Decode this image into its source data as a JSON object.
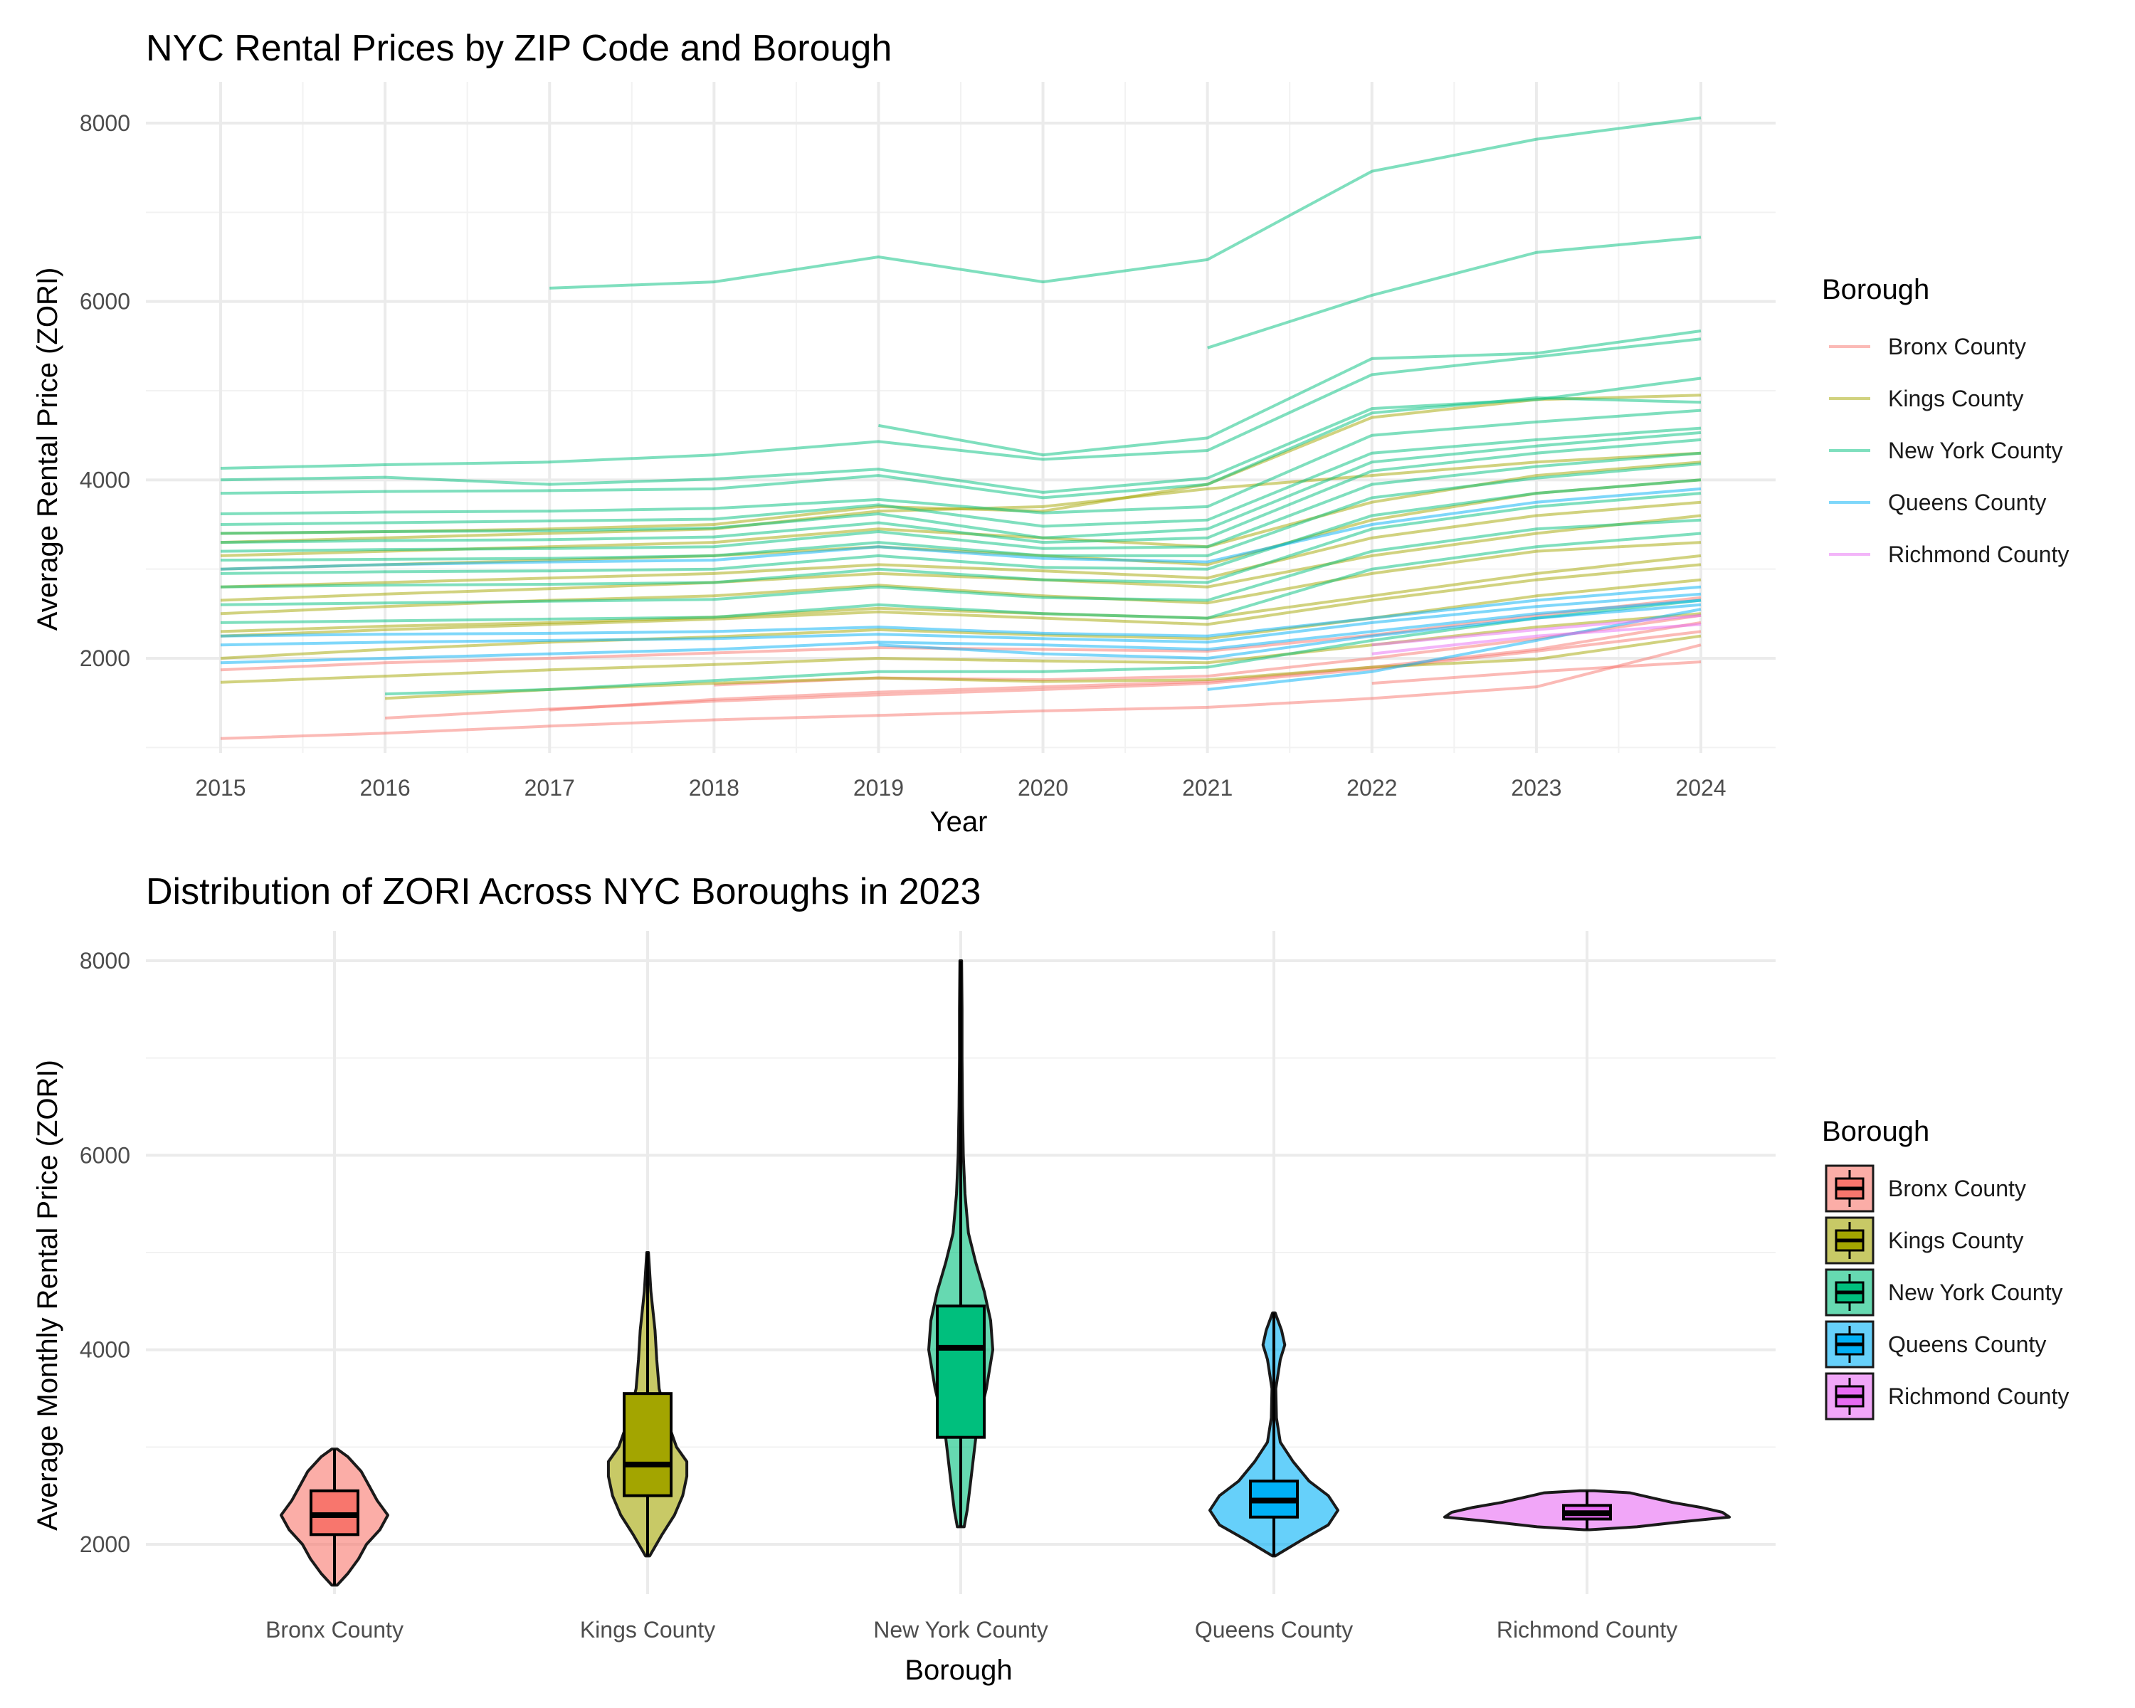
{
  "colors": {
    "Bronx County": "#F8766D",
    "Kings County": "#A3A500",
    "New York County": "#00BF7D",
    "Queens County": "#00B0F6",
    "Richmond County": "#E76BF3"
  },
  "chart_data": [
    {
      "type": "line",
      "title": "NYC Rental Prices by ZIP Code and Borough",
      "xlabel": "Year",
      "ylabel": "Average Rental Price (ZORI)",
      "x": [
        2015,
        2016,
        2017,
        2018,
        2019,
        2020,
        2021,
        2022,
        2023,
        2024
      ],
      "xlim": [
        2015,
        2024
      ],
      "ylim": [
        1000,
        8000
      ],
      "yticks": [
        2000,
        4000,
        6000,
        8000
      ],
      "grid": true,
      "legend": {
        "title": "Borough",
        "position": "right",
        "entries": [
          "Bronx County",
          "Kings County",
          "New York County",
          "Queens County",
          "Richmond County"
        ]
      },
      "series": [
        {
          "name": "Bronx County",
          "values": [
            1100,
            1160,
            1240,
            1310,
            1360,
            1410,
            1450,
            1550,
            1680,
            2150
          ]
        },
        {
          "name": "Bronx County",
          "values": [
            null,
            1330,
            1430,
            1520,
            1590,
            1650,
            1720,
            1880,
            2080,
            2300
          ]
        },
        {
          "name": "Bronx County",
          "values": [
            null,
            null,
            1420,
            1540,
            1620,
            1680,
            1740,
            1900,
            2100,
            2400
          ]
        },
        {
          "name": "Bronx County",
          "values": [
            null,
            null,
            null,
            null,
            null,
            null,
            null,
            1720,
            1850,
            1960
          ]
        },
        {
          "name": "Bronx County",
          "values": [
            1870,
            1950,
            2000,
            2060,
            2120,
            2100,
            2080,
            2260,
            2480,
            2680
          ]
        },
        {
          "name": "Bronx County",
          "values": [
            null,
            null,
            null,
            1700,
            1780,
            1760,
            1800,
            2000,
            2220,
            2480
          ]
        },
        {
          "name": "Kings County",
          "values": [
            1730,
            1800,
            1870,
            1930,
            2000,
            1970,
            1950,
            2150,
            2350,
            2500
          ]
        },
        {
          "name": "Kings County",
          "values": [
            null,
            1550,
            1650,
            1720,
            1780,
            1740,
            1760,
            1900,
            1990,
            2250
          ]
        },
        {
          "name": "Kings County",
          "values": [
            2000,
            2100,
            2180,
            2240,
            2320,
            2260,
            2220,
            2450,
            2700,
            2880
          ]
        },
        {
          "name": "Kings County",
          "values": [
            2250,
            2320,
            2380,
            2440,
            2520,
            2450,
            2380,
            2650,
            2880,
            3050
          ]
        },
        {
          "name": "Kings County",
          "values": [
            2500,
            2580,
            2650,
            2700,
            2820,
            2700,
            2620,
            2950,
            3200,
            3300
          ]
        },
        {
          "name": "Kings County",
          "values": [
            2650,
            2720,
            2780,
            2850,
            2950,
            2880,
            2800,
            3150,
            3400,
            3600
          ]
        },
        {
          "name": "Kings County",
          "values": [
            2800,
            2850,
            2900,
            2950,
            3050,
            2980,
            2900,
            3350,
            3600,
            3750
          ]
        },
        {
          "name": "Kings County",
          "values": [
            3000,
            3050,
            3100,
            3150,
            3250,
            3150,
            3050,
            3550,
            3850,
            4000
          ]
        },
        {
          "name": "Kings County",
          "values": [
            3150,
            3200,
            3250,
            3300,
            3450,
            3350,
            3250,
            3750,
            4050,
            4200
          ]
        },
        {
          "name": "Kings County",
          "values": [
            3300,
            3350,
            3400,
            3450,
            3650,
            3700,
            3900,
            4050,
            4200,
            4300
          ]
        },
        {
          "name": "Kings County",
          "values": [
            3400,
            3420,
            3450,
            3500,
            3700,
            3650,
            3950,
            4700,
            4900,
            4950
          ]
        },
        {
          "name": "Kings County",
          "values": [
            2300,
            2360,
            2400,
            2460,
            2560,
            2500,
            2450,
            2700,
            2950,
            3150
          ]
        },
        {
          "name": "New York County",
          "values": [
            null,
            null,
            6150,
            6220,
            6500,
            6220,
            6470,
            7460,
            7820,
            8060
          ]
        },
        {
          "name": "New York County",
          "values": [
            null,
            null,
            null,
            null,
            null,
            null,
            5480,
            6070,
            6550,
            6720
          ]
        },
        {
          "name": "New York County",
          "values": [
            4130,
            4170,
            4200,
            4280,
            4430,
            4230,
            4330,
            5180,
            5380,
            5580
          ]
        },
        {
          "name": "New York County",
          "values": [
            null,
            null,
            null,
            null,
            4610,
            4280,
            4470,
            5360,
            5420,
            5670
          ]
        },
        {
          "name": "New York County",
          "values": [
            4000,
            4030,
            3950,
            4010,
            4120,
            3860,
            4020,
            4800,
            4900,
            5140
          ]
        },
        {
          "name": "New York County",
          "values": [
            3850,
            3870,
            3880,
            3900,
            4050,
            3800,
            3950,
            4750,
            4920,
            4870
          ]
        },
        {
          "name": "New York County",
          "values": [
            3620,
            3640,
            3650,
            3680,
            3780,
            3630,
            3700,
            4500,
            4650,
            4780
          ]
        },
        {
          "name": "New York County",
          "values": [
            3500,
            3520,
            3540,
            3560,
            3720,
            3480,
            3550,
            4300,
            4450,
            4580
          ]
        },
        {
          "name": "New York County",
          "values": [
            3400,
            3420,
            3430,
            3460,
            3620,
            3350,
            3450,
            4200,
            4380,
            4530
          ]
        },
        {
          "name": "New York County",
          "values": [
            3300,
            3320,
            3330,
            3360,
            3520,
            3300,
            3350,
            4100,
            4300,
            4450
          ]
        },
        {
          "name": "New York County",
          "values": [
            3200,
            3220,
            3230,
            3250,
            3420,
            3230,
            3250,
            3950,
            4150,
            4300
          ]
        },
        {
          "name": "New York County",
          "values": [
            3100,
            3110,
            3120,
            3150,
            3300,
            3150,
            3150,
            3800,
            4020,
            4180
          ]
        },
        {
          "name": "New York County",
          "values": [
            2950,
            2970,
            2980,
            3000,
            3150,
            3020,
            3000,
            3600,
            3850,
            4000
          ]
        },
        {
          "name": "New York County",
          "values": [
            2800,
            2820,
            2830,
            2850,
            3000,
            2880,
            2850,
            3450,
            3700,
            3850
          ]
        },
        {
          "name": "New York County",
          "values": [
            2600,
            2620,
            2640,
            2660,
            2800,
            2680,
            2650,
            3200,
            3450,
            3550
          ]
        },
        {
          "name": "New York County",
          "values": [
            2400,
            2420,
            2440,
            2460,
            2600,
            2500,
            2450,
            3000,
            3250,
            3400
          ]
        },
        {
          "name": "New York County",
          "values": [
            null,
            1600,
            1650,
            1750,
            1850,
            1850,
            1900,
            2200,
            2450,
            2650
          ]
        },
        {
          "name": "Queens County",
          "values": [
            3000,
            3050,
            3080,
            3100,
            3250,
            3120,
            3080,
            3500,
            3750,
            3900
          ]
        },
        {
          "name": "Queens County",
          "values": [
            2250,
            2270,
            2280,
            2300,
            2350,
            2280,
            2250,
            2450,
            2650,
            2800
          ]
        },
        {
          "name": "Queens County",
          "values": [
            2150,
            2180,
            2200,
            2220,
            2270,
            2220,
            2180,
            2400,
            2580,
            2720
          ]
        },
        {
          "name": "Queens County",
          "values": [
            1950,
            2000,
            2050,
            2100,
            2180,
            2150,
            2100,
            2300,
            2500,
            2650
          ]
        },
        {
          "name": "Queens County",
          "values": [
            null,
            null,
            null,
            null,
            2150,
            2050,
            2000,
            2250,
            2450,
            2600
          ]
        },
        {
          "name": "Queens County",
          "values": [
            null,
            null,
            null,
            null,
            null,
            null,
            1650,
            1850,
            2200,
            2550
          ]
        },
        {
          "name": "Richmond County",
          "values": [
            null,
            null,
            null,
            null,
            null,
            null,
            null,
            2150,
            2320,
            2480
          ]
        },
        {
          "name": "Richmond County",
          "values": [
            null,
            null,
            null,
            null,
            null,
            null,
            null,
            2050,
            2250,
            2380
          ]
        }
      ]
    },
    {
      "type": "violin",
      "title": "Distribution of ZORI Across NYC Boroughs in 2023",
      "xlabel": "Borough",
      "ylabel": "Average Monthly Rental Price (ZORI)",
      "categories": [
        "Bronx County",
        "Kings County",
        "New York County",
        "Queens County",
        "Richmond County"
      ],
      "ylim": [
        1500,
        8200
      ],
      "yticks": [
        2000,
        4000,
        6000,
        8000
      ],
      "grid": true,
      "legend": {
        "title": "Borough",
        "position": "right",
        "entries": [
          "Bronx County",
          "Kings County",
          "New York County",
          "Queens County",
          "Richmond County"
        ]
      },
      "series": [
        {
          "name": "Bronx County",
          "min": 1580,
          "q1": 2100,
          "median": 2300,
          "q3": 2550,
          "max": 2980,
          "density": [
            [
              1580,
              0.05
            ],
            [
              1700,
              0.25
            ],
            [
              1850,
              0.45
            ],
            [
              2000,
              0.6
            ],
            [
              2150,
              0.85
            ],
            [
              2300,
              1.0
            ],
            [
              2450,
              0.8
            ],
            [
              2600,
              0.65
            ],
            [
              2750,
              0.5
            ],
            [
              2900,
              0.25
            ],
            [
              2980,
              0.05
            ]
          ]
        },
        {
          "name": "Kings County",
          "min": 1880,
          "q1": 2500,
          "median": 2820,
          "q3": 3550,
          "max": 5000,
          "density": [
            [
              1880,
              0.05
            ],
            [
              2100,
              0.35
            ],
            [
              2300,
              0.65
            ],
            [
              2500,
              0.85
            ],
            [
              2700,
              0.95
            ],
            [
              2850,
              0.95
            ],
            [
              3000,
              0.7
            ],
            [
              3300,
              0.45
            ],
            [
              3600,
              0.28
            ],
            [
              3900,
              0.22
            ],
            [
              4200,
              0.18
            ],
            [
              4600,
              0.08
            ],
            [
              4800,
              0.05
            ],
            [
              5000,
              0.02
            ]
          ]
        },
        {
          "name": "New York County",
          "min": 2180,
          "q1": 3100,
          "median": 4020,
          "q3": 4450,
          "max": 8000,
          "density": [
            [
              2180,
              0.08
            ],
            [
              2350,
              0.15
            ],
            [
              2600,
              0.22
            ],
            [
              2900,
              0.3
            ],
            [
              3200,
              0.38
            ],
            [
              3600,
              0.6
            ],
            [
              4000,
              0.75
            ],
            [
              4300,
              0.7
            ],
            [
              4600,
              0.55
            ],
            [
              4900,
              0.35
            ],
            [
              5200,
              0.18
            ],
            [
              5600,
              0.1
            ],
            [
              6000,
              0.06
            ],
            [
              6500,
              0.04
            ],
            [
              7000,
              0.03
            ],
            [
              7500,
              0.03
            ],
            [
              8000,
              0.02
            ]
          ]
        },
        {
          "name": "Queens County",
          "min": 1880,
          "q1": 2280,
          "median": 2450,
          "q3": 2650,
          "max": 4380,
          "density": [
            [
              1880,
              0.02
            ],
            [
              2050,
              0.45
            ],
            [
              2200,
              0.85
            ],
            [
              2350,
              1.0
            ],
            [
              2500,
              0.85
            ],
            [
              2650,
              0.55
            ],
            [
              2850,
              0.3
            ],
            [
              3050,
              0.1
            ],
            [
              3300,
              0.04
            ],
            [
              3600,
              0.03
            ],
            [
              3900,
              0.1
            ],
            [
              4050,
              0.17
            ],
            [
              4200,
              0.12
            ],
            [
              4380,
              0.02
            ]
          ]
        },
        {
          "name": "Richmond County",
          "min": 2150,
          "q1": 2260,
          "median": 2320,
          "q3": 2400,
          "max": 2550,
          "density": [
            [
              2150,
              0.02
            ],
            [
              2180,
              0.35
            ],
            [
              2230,
              0.65
            ],
            [
              2280,
              1.0
            ],
            [
              2330,
              0.95
            ],
            [
              2380,
              0.8
            ],
            [
              2430,
              0.6
            ],
            [
              2480,
              0.45
            ],
            [
              2530,
              0.3
            ],
            [
              2550,
              0.05
            ]
          ]
        }
      ]
    }
  ]
}
